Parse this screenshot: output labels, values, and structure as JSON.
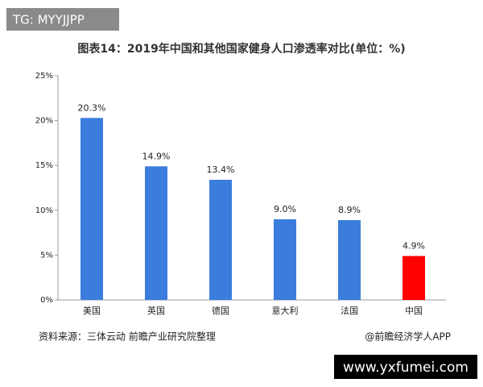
{
  "badge": "TG: MYYJJPP",
  "chart_data": {
    "type": "bar",
    "title": "图表14：2019年中国和其他国家健身人口渗透率对比(单位：%)",
    "categories": [
      "美国",
      "英国",
      "德国",
      "意大利",
      "法国",
      "中国"
    ],
    "values": [
      20.3,
      14.9,
      13.4,
      9.0,
      8.9,
      4.9
    ],
    "value_labels": [
      "20.3%",
      "14.9%",
      "13.4%",
      "9.0%",
      "8.9%",
      "4.9%"
    ],
    "colors": [
      "#3b7ddd",
      "#3b7ddd",
      "#3b7ddd",
      "#3b7ddd",
      "#3b7ddd",
      "#ff0000"
    ],
    "ylim": [
      0,
      25
    ],
    "yticks": [
      {
        "value": 0,
        "label": "0%"
      },
      {
        "value": 5,
        "label": "5%"
      },
      {
        "value": 10,
        "label": "10%"
      },
      {
        "value": 15,
        "label": "15%"
      },
      {
        "value": 20,
        "label": "20%"
      },
      {
        "value": 25,
        "label": "25%"
      }
    ],
    "grid": false
  },
  "source": "资料来源：三体云动 前瞻产业研究院整理",
  "credit": "@前瞻经济学人APP",
  "watermark": "www.yxfumei.com"
}
